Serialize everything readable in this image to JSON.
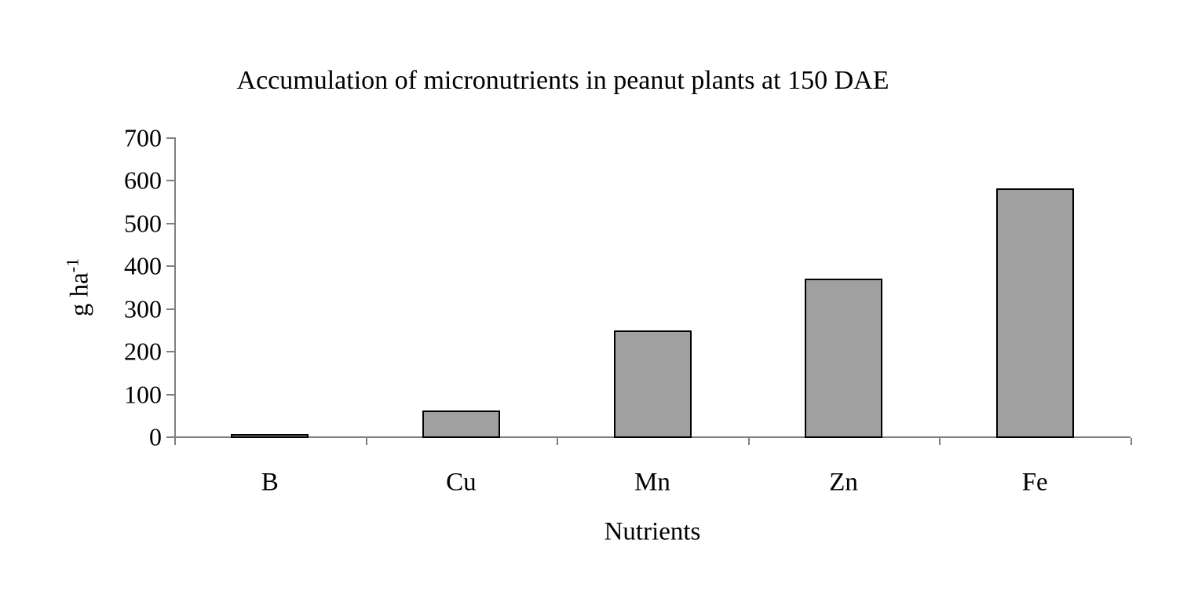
{
  "chart_data": {
    "type": "bar",
    "title": "Accumulation of micronutrients in peanut plants at 150 DAE",
    "xlabel": "Nutrients",
    "ylabel": {
      "text": "g ha",
      "superscript": "-1"
    },
    "categories": [
      "B",
      "Cu",
      "Mn",
      "Zn",
      "Fe"
    ],
    "values": [
      4,
      65,
      252,
      373,
      585
    ],
    "ylim": [
      0,
      700
    ],
    "yticks": [
      "0",
      "100",
      "200",
      "300",
      "400",
      "500",
      "600",
      "700"
    ],
    "grid": false,
    "legend": false,
    "colors": {
      "bar_fill": "#A0A0A0",
      "bar_border": "#000000",
      "axis": "#808080",
      "text": "#000000",
      "background": "#FFFFFF"
    }
  }
}
